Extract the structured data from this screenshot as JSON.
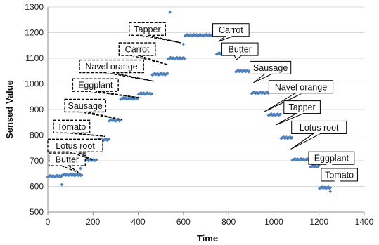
{
  "chart_data": {
    "type": "scatter",
    "title": "",
    "xlabel": "Time",
    "ylabel": "Sensed Value",
    "xlim": [
      0,
      1400
    ],
    "ylim": [
      500,
      1300
    ],
    "xticks": [
      0,
      200,
      400,
      600,
      800,
      1000,
      1200,
      1400
    ],
    "yticks": [
      500,
      600,
      700,
      800,
      900,
      1000,
      1100,
      1200,
      1300
    ],
    "grid": "horizontal",
    "marker_color": "#4f81bd",
    "segments": [
      {
        "x_start": 0,
        "x_end": 60,
        "y": 640
      },
      {
        "x_start": 62,
        "x_end": 150,
        "y": 645
      },
      {
        "x_start": 152,
        "x_end": 215,
        "y": 703
      },
      {
        "x_start": 217,
        "x_end": 270,
        "y": 782
      },
      {
        "x_start": 272,
        "x_end": 320,
        "y": 858
      },
      {
        "x_start": 322,
        "x_end": 400,
        "y": 943
      },
      {
        "x_start": 402,
        "x_end": 460,
        "y": 962
      },
      {
        "x_start": 462,
        "x_end": 530,
        "y": 1038
      },
      {
        "x_start": 532,
        "x_end": 605,
        "y": 1100
      },
      {
        "x_start": 607,
        "x_end": 745,
        "y": 1190
      },
      {
        "x_start": 747,
        "x_end": 830,
        "y": 1118
      },
      {
        "x_start": 832,
        "x_end": 900,
        "y": 1050
      },
      {
        "x_start": 902,
        "x_end": 975,
        "y": 965
      },
      {
        "x_start": 977,
        "x_end": 1030,
        "y": 880
      },
      {
        "x_start": 1032,
        "x_end": 1080,
        "y": 790
      },
      {
        "x_start": 1082,
        "x_end": 1160,
        "y": 705
      },
      {
        "x_start": 1162,
        "x_end": 1200,
        "y": 678
      },
      {
        "x_start": 1202,
        "x_end": 1250,
        "y": 595
      }
    ],
    "outliers": [
      {
        "x": 62,
        "y": 607
      },
      {
        "x": 145,
        "y": 670
      },
      {
        "x": 540,
        "y": 1280
      },
      {
        "x": 600,
        "y": 1155
      },
      {
        "x": 1250,
        "y": 580
      },
      {
        "x": 1250,
        "y": 625
      }
    ],
    "annotations": [
      {
        "label": "Butter",
        "style": "dashed",
        "box_x": 5,
        "box_y": 730,
        "point_x": 140,
        "point_y": 652
      },
      {
        "label": "Lotus root",
        "style": "dashed",
        "box_x": 0,
        "box_y": 784,
        "point_x": 200,
        "point_y": 703
      },
      {
        "label": "Tomato",
        "style": "dashed",
        "box_x": 25,
        "box_y": 858,
        "point_x": 255,
        "point_y": 795
      },
      {
        "label": "Sausage",
        "style": "dashed",
        "box_x": 75,
        "box_y": 940,
        "point_x": 330,
        "point_y": 860
      },
      {
        "label": "Eggplant",
        "style": "dashed",
        "box_x": 110,
        "box_y": 1020,
        "point_x": 415,
        "point_y": 945
      },
      {
        "label": "Navel orange",
        "style": "dashed",
        "box_x": 140,
        "box_y": 1093,
        "point_x": 470,
        "point_y": 1010
      },
      {
        "label": "Carrot",
        "style": "dashed",
        "box_x": 315,
        "box_y": 1160,
        "point_x": 530,
        "point_y": 1075
      },
      {
        "label": "Tapper",
        "style": "dashed",
        "box_x": 360,
        "box_y": 1239,
        "point_x": 590,
        "point_y": 1160
      },
      {
        "label": "Carrot",
        "style": "solid",
        "box_x": 810,
        "box_y": 1235,
        "point_x": 755,
        "point_y": 1165
      },
      {
        "label": "Butter",
        "style": "solid",
        "box_x": 850,
        "box_y": 1160,
        "point_x": 835,
        "point_y": 1095
      },
      {
        "label": "Sausage",
        "style": "solid",
        "box_x": 985,
        "box_y": 1088,
        "point_x": 910,
        "point_y": 1005
      },
      {
        "label": "Navel orange",
        "style": "solid",
        "box_x": 1120,
        "box_y": 1013,
        "point_x": 955,
        "point_y": 890
      },
      {
        "label": "Tapper",
        "style": "solid",
        "box_x": 1125,
        "box_y": 934,
        "point_x": 1010,
        "point_y": 840
      },
      {
        "label": "Lotus root",
        "style": "solid",
        "box_x": 1200,
        "box_y": 855,
        "point_x": 1075,
        "point_y": 745
      },
      {
        "label": "Eggplant",
        "style": "solid",
        "box_x": 1255,
        "box_y": 735,
        "point_x": 1165,
        "point_y": 690
      },
      {
        "label": "Tomato",
        "style": "solid",
        "box_x": 1290,
        "box_y": 670,
        "point_x": 1225,
        "point_y": 640
      }
    ]
  }
}
